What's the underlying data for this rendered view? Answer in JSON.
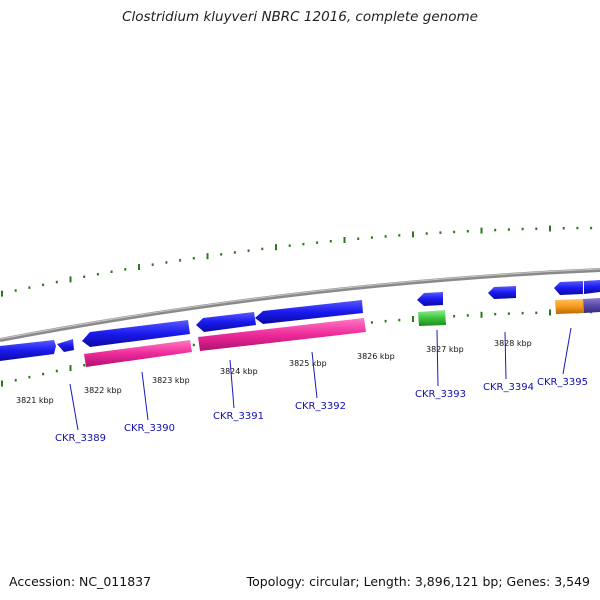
{
  "header": {
    "title": "Clostridium kluyveri NBRC 12016, complete genome"
  },
  "footer": {
    "accession": "Accession: NC_011837",
    "stats": "Topology: circular; Length: 3,896,121 bp; Genes: 3,549"
  },
  "ruler": {
    "labels": [
      "3821 kbp",
      "3822 kbp",
      "3823 kbp",
      "3824 kbp",
      "3825 kbp",
      "3826 kbp",
      "3827 kbp",
      "3828 kbp"
    ]
  },
  "genes": {
    "labels": [
      "CKR_3389",
      "CKR_3390",
      "CKR_3391",
      "CKR_3392",
      "CKR_3393",
      "CKR_3394",
      "CKR_3395"
    ]
  },
  "colors": {
    "forward_cds": "#1a1aee",
    "gene_pink": "#ee2a9a",
    "gene_green": "#3cc43c",
    "gene_orange": "#f59a1c",
    "gene_purple": "#5a4aa8",
    "tick_green": "#2a7a1a",
    "backbone": "#888888",
    "locus_text": "#1010b0"
  }
}
